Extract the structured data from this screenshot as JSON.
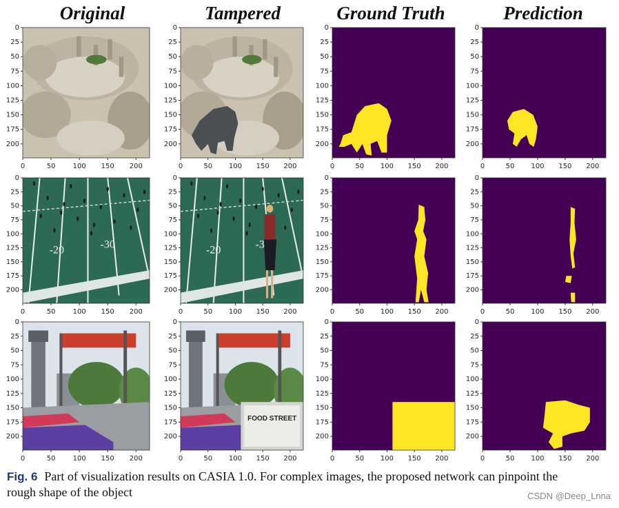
{
  "titles": [
    "Original",
    "Tampered",
    "Ground Truth",
    "Prediction"
  ],
  "axes": {
    "lim": [
      0,
      224
    ],
    "xticks": [
      0,
      50,
      100,
      150,
      200
    ],
    "yticks": [
      0,
      25,
      50,
      75,
      100,
      125,
      150,
      175,
      200
    ]
  },
  "image_texts": [
    "-20",
    "-30",
    "FOOD STREET"
  ],
  "caption": {
    "label": "Fig. 6",
    "line1": "Part of visualization results on CASIA 1.0. For complex images, the proposed network can pinpoint the",
    "line2": "rough shape of the object"
  },
  "watermark": "CSDN @Deep_Lnna"
}
